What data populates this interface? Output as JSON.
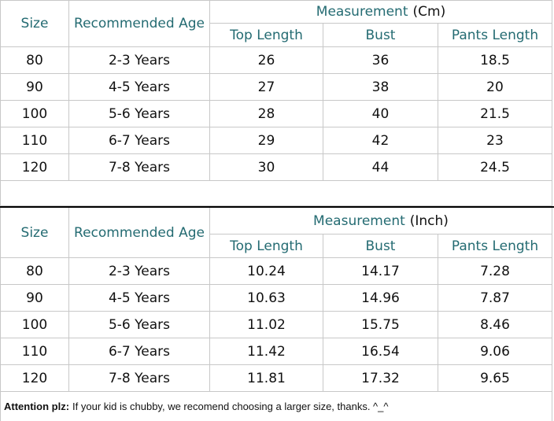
{
  "tables": [
    {
      "headers": {
        "size": "Size",
        "age": "Recommended Age",
        "measurement": "Measurement",
        "unit": "(Cm)",
        "columns": [
          "Top Length",
          "Bust",
          "Pants Length"
        ]
      },
      "rows": [
        [
          "80",
          "2-3 Years",
          "26",
          "36",
          "18.5"
        ],
        [
          "90",
          "4-5 Years",
          "27",
          "38",
          "20"
        ],
        [
          "100",
          "5-6 Years",
          "28",
          "40",
          "21.5"
        ],
        [
          "110",
          "6-7 Years",
          "29",
          "42",
          "23"
        ],
        [
          "120",
          "7-8 Years",
          "30",
          "44",
          "24.5"
        ]
      ]
    },
    {
      "headers": {
        "size": "Size",
        "age": "Recommended Age",
        "measurement": "Measurement",
        "unit": "(Inch)",
        "columns": [
          "Top Length",
          "Bust",
          "Pants Length"
        ]
      },
      "rows": [
        [
          "80",
          "2-3 Years",
          "10.24",
          "14.17",
          "7.28"
        ],
        [
          "90",
          "4-5 Years",
          "10.63",
          "14.96",
          "7.87"
        ],
        [
          "100",
          "5-6 Years",
          "11.02",
          "15.75",
          "8.46"
        ],
        [
          "110",
          "6-7 Years",
          "11.42",
          "16.54",
          "9.06"
        ],
        [
          "120",
          "7-8 Years",
          "11.81",
          "17.32",
          "9.65"
        ]
      ]
    }
  ],
  "footer": {
    "label": "Attention plz:",
    "text": "If your kid is chubby, we recomend choosing a larger size, thanks. ^_^"
  }
}
